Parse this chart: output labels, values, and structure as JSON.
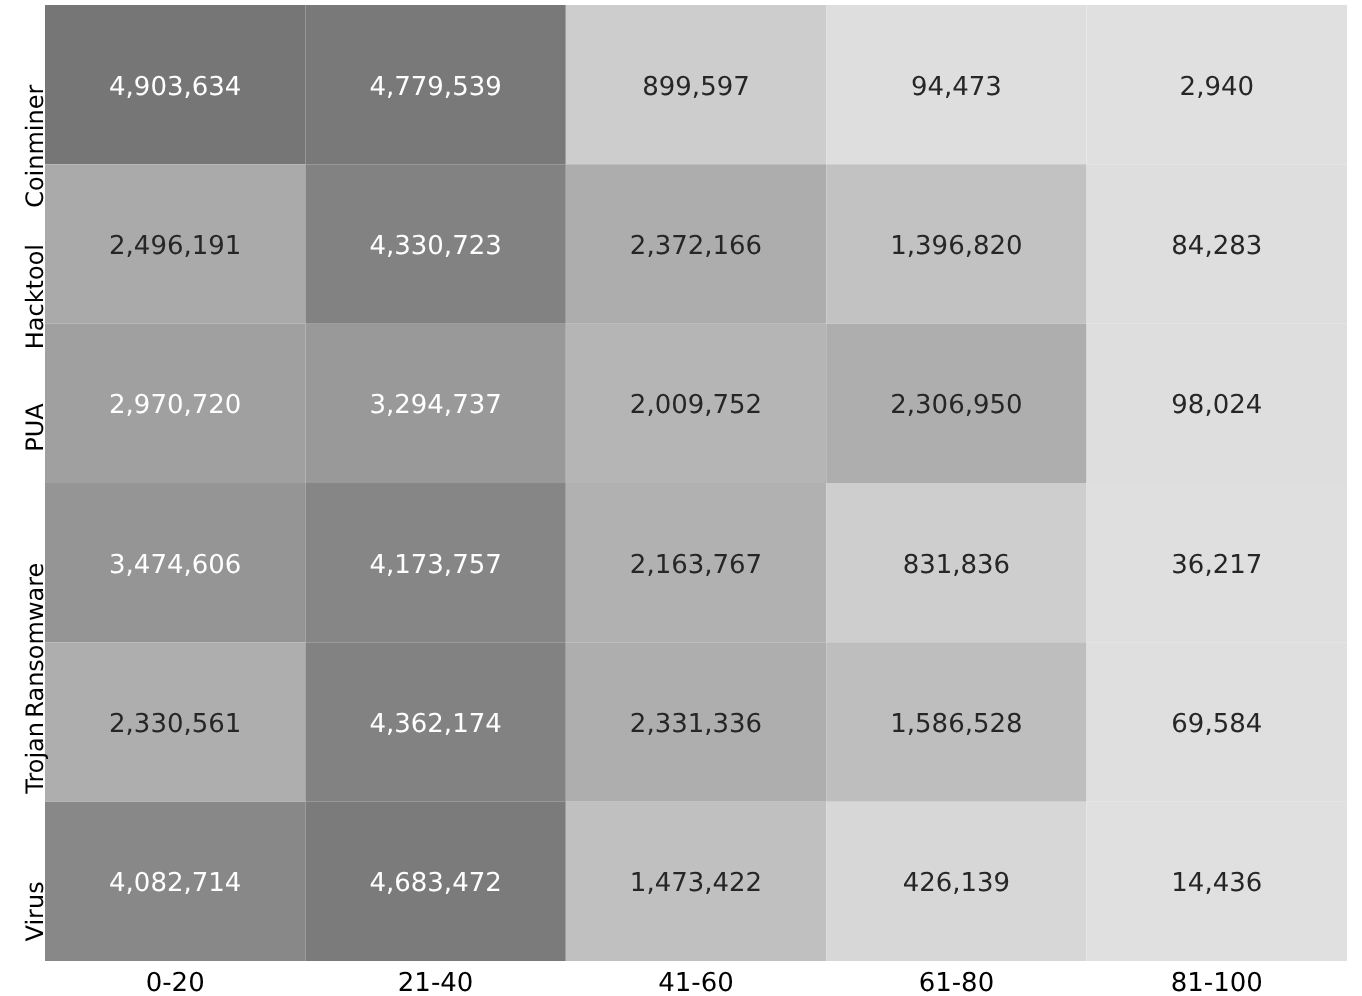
{
  "chart_data": {
    "type": "heatmap",
    "categories": [
      "0-20",
      "21-40",
      "41-60",
      "61-80",
      "81-100"
    ],
    "y_categories": [
      "Coinminer",
      "Hacktool",
      "PUA",
      "Ransomware",
      "Trojan",
      "Virus"
    ],
    "cells": [
      [
        4903634,
        4779539,
        899597,
        94473,
        2940
      ],
      [
        2496191,
        4330723,
        2372166,
        1396820,
        84283
      ],
      [
        2970720,
        3294737,
        2009752,
        2306950,
        98024
      ],
      [
        3474606,
        4173757,
        2163767,
        831836,
        36217
      ],
      [
        2330561,
        4362174,
        2331336,
        1586528,
        69584
      ],
      [
        4082714,
        4683472,
        1473422,
        426139,
        14436
      ]
    ],
    "cell_labels": [
      [
        "4,903,634",
        "4,779,539",
        "899,597",
        "94,473",
        "2,940"
      ],
      [
        "2,496,191",
        "4,330,723",
        "2,372,166",
        "1,396,820",
        "84,283"
      ],
      [
        "2,970,720",
        "3,294,737",
        "2,009,752",
        "2,306,950",
        "98,024"
      ],
      [
        "3,474,606",
        "4,173,757",
        "2,163,767",
        "831,836",
        "36,217"
      ],
      [
        "2,330,561",
        "4,362,174",
        "2,331,336",
        "1,586,528",
        "69,584"
      ],
      [
        "4,082,714",
        "4,683,472",
        "1,473,422",
        "426,139",
        "14,436"
      ]
    ],
    "data_labels": true
  }
}
